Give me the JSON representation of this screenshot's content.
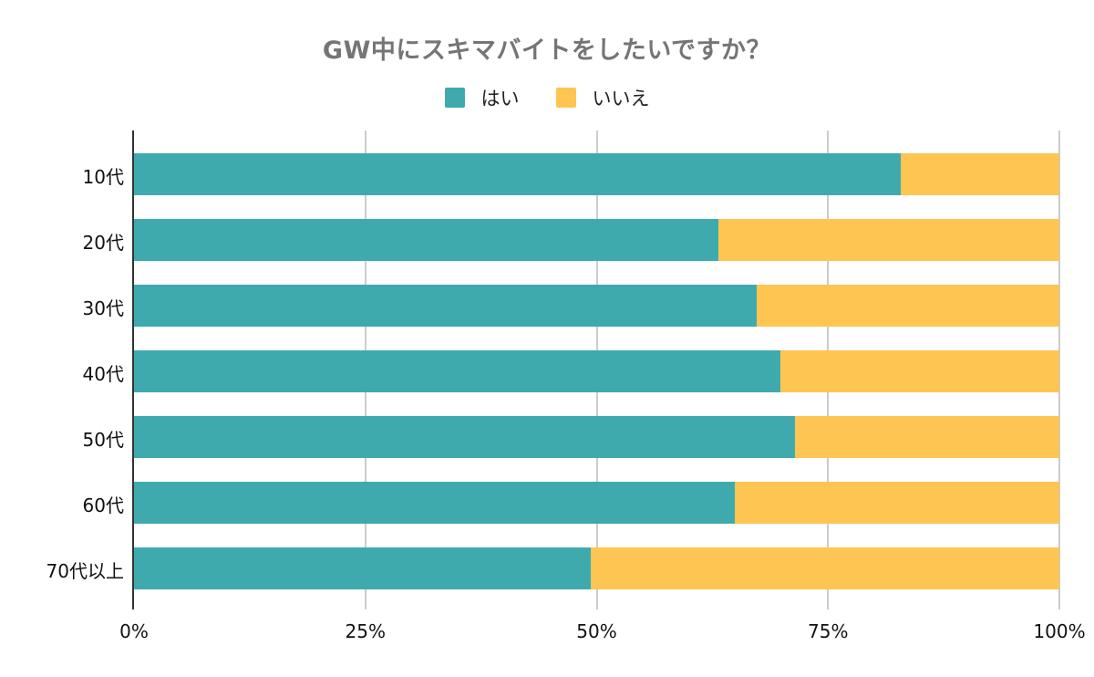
{
  "chart_data": {
    "type": "bar",
    "orientation": "horizontal",
    "stacked": true,
    "normalized": true,
    "title": "GW中にスキマバイトをしたいですか？",
    "xlabel": "",
    "ylabel": "",
    "xlim": [
      0,
      100
    ],
    "grid": true,
    "legend_position": "top",
    "categories": [
      "10代",
      "20代",
      "30代",
      "40代",
      "50代",
      "60代",
      "70代以上"
    ],
    "series": [
      {
        "name": "はい",
        "color": "#3faaae",
        "values": [
          82.9,
          63.2,
          67.3,
          69.9,
          71.4,
          64.9,
          49.4
        ]
      },
      {
        "name": "いいえ",
        "color": "#fec553",
        "values": [
          17.1,
          36.8,
          32.7,
          30.1,
          28.6,
          35.1,
          50.6
        ]
      }
    ],
    "x_ticks": [
      "0%",
      "25%",
      "50%",
      "75%",
      "100%"
    ]
  },
  "title": "GW中にスキマバイトをしたいですか？",
  "legend": [
    {
      "label": "はい",
      "color": "#3faaae"
    },
    {
      "label": "いいえ",
      "color": "#fec553"
    }
  ]
}
